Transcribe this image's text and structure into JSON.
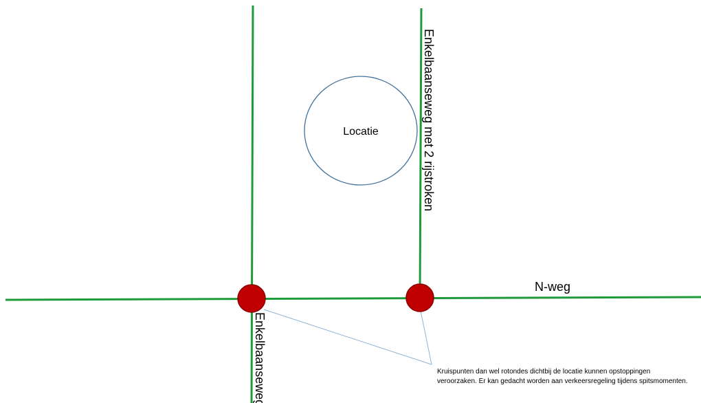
{
  "roads": {
    "main_road_label": "N-weg",
    "east_road_label": "Enkelbaanseweg met 2 rijstroken",
    "west_road_label": "Enkelbaanseweg"
  },
  "location": {
    "label": "Locatie"
  },
  "note": {
    "text": "Kruispunten dan wel rotondes dichtbij de locatie kunnen opstoppingen veroorzaken. Er kan gedacht worden aan verkeersregeling tijdens spitsmomenten."
  },
  "colors": {
    "road": "#1f9a3a",
    "junction": "#c00000",
    "location_outline": "#41719c",
    "callout_line": "#8fb3d6"
  }
}
